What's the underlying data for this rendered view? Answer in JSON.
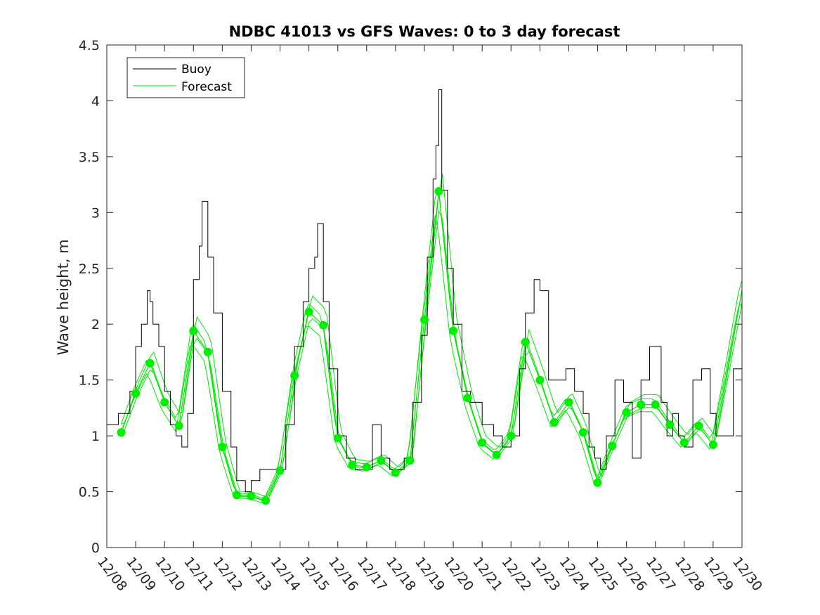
{
  "chart_data": {
    "type": "line",
    "title": "NDBC 41013 vs GFS Waves: 0 to 3 day forecast",
    "xlabel": "",
    "ylabel": "Wave height, m",
    "xlim": [
      8,
      30
    ],
    "ylim": [
      0,
      4.5
    ],
    "yticks": [
      0,
      0.5,
      1,
      1.5,
      2,
      2.5,
      3,
      3.5,
      4,
      4.5
    ],
    "ytick_labels": [
      "0",
      "0.5",
      "1",
      "1.5",
      "2",
      "2.5",
      "3",
      "3.5",
      "4",
      "4.5"
    ],
    "xticks": [
      8,
      9,
      10,
      11,
      12,
      13,
      14,
      15,
      16,
      17,
      18,
      19,
      20,
      21,
      22,
      23,
      24,
      25,
      26,
      27,
      28,
      29,
      30
    ],
    "xtick_labels": [
      "12/08",
      "12/09",
      "12/10",
      "12/11",
      "12/12",
      "12/13",
      "12/14",
      "12/15",
      "12/16",
      "12/17",
      "12/18",
      "12/19",
      "12/20",
      "12/21",
      "12/22",
      "12/23",
      "12/24",
      "12/25",
      "12/26",
      "12/27",
      "12/28",
      "12/29",
      "12/30"
    ],
    "legend": {
      "position": "top-left",
      "entries": [
        "Buoy",
        "Forecast"
      ]
    },
    "colors": {
      "buoy": "#000000",
      "forecast": "#00e600",
      "marker": "#00ee00",
      "axis": "#262626"
    },
    "series": [
      {
        "name": "Buoy",
        "x": [
          8.0,
          8.2,
          8.4,
          8.6,
          8.8,
          9.0,
          9.2,
          9.4,
          9.5,
          9.6,
          9.8,
          10.0,
          10.2,
          10.4,
          10.6,
          10.8,
          11.0,
          11.2,
          11.3,
          11.5,
          11.7,
          12.0,
          12.3,
          12.5,
          12.8,
          13.0,
          13.3,
          13.5,
          13.8,
          14.0,
          14.2,
          14.5,
          14.8,
          15.0,
          15.2,
          15.3,
          15.5,
          15.7,
          16.0,
          16.3,
          16.6,
          16.9,
          17.2,
          17.5,
          17.8,
          18.0,
          18.3,
          18.6,
          18.9,
          19.1,
          19.3,
          19.4,
          19.5,
          19.6,
          19.8,
          20.0,
          20.3,
          20.6,
          21.0,
          21.4,
          21.7,
          22.0,
          22.3,
          22.5,
          22.8,
          23.0,
          23.3,
          23.6,
          23.9,
          24.2,
          24.5,
          24.7,
          24.9,
          25.1,
          25.3,
          25.6,
          25.9,
          26.2,
          26.5,
          26.8,
          27.0,
          27.2,
          27.4,
          27.6,
          27.8,
          28.0,
          28.3,
          28.6,
          28.9,
          29.1,
          29.4,
          29.7,
          30.0
        ],
        "values": [
          1.1,
          1.1,
          1.2,
          1.2,
          1.4,
          1.8,
          2.0,
          2.3,
          2.2,
          2.0,
          1.8,
          1.4,
          1.1,
          1.0,
          0.9,
          1.2,
          2.4,
          2.7,
          3.1,
          2.6,
          2.1,
          1.4,
          0.9,
          0.6,
          0.5,
          0.6,
          0.7,
          0.7,
          0.7,
          0.7,
          1.1,
          1.8,
          2.2,
          2.5,
          2.6,
          2.9,
          2.2,
          1.6,
          1.0,
          0.8,
          0.7,
          0.7,
          1.1,
          0.8,
          0.7,
          0.7,
          0.8,
          1.3,
          1.9,
          2.6,
          3.3,
          3.6,
          4.1,
          3.2,
          2.5,
          2.0,
          1.4,
          1.3,
          1.1,
          1.0,
          0.9,
          1.0,
          1.6,
          2.1,
          2.4,
          2.3,
          1.5,
          1.5,
          1.6,
          1.4,
          1.2,
          0.9,
          0.8,
          0.7,
          1.0,
          1.5,
          1.3,
          0.8,
          1.5,
          1.8,
          1.8,
          1.3,
          1.0,
          1.2,
          1.0,
          0.9,
          1.5,
          1.6,
          1.2,
          1.0,
          1.0,
          1.6,
          1.4
        ]
      },
      {
        "name": "Forecast",
        "x": [
          8.5,
          9.0,
          9.5,
          10.0,
          10.5,
          11.0,
          11.5,
          12.0,
          12.5,
          13.0,
          13.5,
          14.0,
          14.5,
          15.0,
          15.5,
          16.0,
          16.5,
          17.0,
          17.5,
          18.0,
          18.5,
          19.0,
          19.5,
          20.0,
          20.5,
          21.0,
          21.5,
          22.0,
          22.5,
          23.0,
          23.5,
          24.0,
          24.5,
          25.0,
          25.5,
          26.0,
          26.5,
          27.0,
          27.5,
          28.0,
          28.5,
          29.0,
          29.5,
          30.0
        ],
        "values": [
          1.03,
          1.38,
          1.65,
          1.3,
          1.09,
          1.94,
          1.75,
          0.9,
          0.47,
          0.46,
          0.42,
          0.69,
          1.54,
          2.11,
          1.99,
          0.98,
          0.74,
          0.72,
          0.78,
          0.67,
          0.78,
          2.04,
          3.19,
          1.94,
          1.34,
          0.94,
          0.83,
          1.0,
          1.84,
          1.5,
          1.12,
          1.3,
          1.03,
          0.58,
          0.91,
          1.21,
          1.28,
          1.28,
          1.1,
          0.94,
          1.09,
          0.92,
          1.6,
          2.3
        ]
      }
    ],
    "analysis_points": {
      "name": "Forecast analysis (0-day)",
      "x": [
        8.5,
        9.0,
        9.5,
        10.0,
        10.5,
        11.0,
        11.5,
        12.0,
        12.5,
        13.0,
        13.5,
        14.0,
        14.5,
        15.0,
        15.5,
        16.0,
        16.5,
        17.0,
        17.5,
        18.0,
        18.5,
        19.0,
        19.5,
        20.0,
        20.5,
        21.0,
        21.5,
        22.0,
        22.5,
        23.0,
        23.5,
        24.0,
        24.5,
        25.0,
        25.5,
        26.0,
        26.5,
        27.0,
        27.5,
        28.0,
        28.5,
        29.0
      ],
      "values": [
        1.03,
        1.38,
        1.65,
        1.3,
        1.09,
        1.94,
        1.75,
        0.9,
        0.47,
        0.46,
        0.42,
        0.69,
        1.54,
        2.11,
        1.99,
        0.98,
        0.74,
        0.72,
        0.78,
        0.67,
        0.78,
        2.04,
        3.19,
        1.94,
        1.34,
        0.94,
        0.83,
        1.0,
        1.84,
        1.5,
        1.12,
        1.3,
        1.03,
        0.58,
        0.91,
        1.21,
        1.28,
        1.28,
        1.1,
        0.94,
        1.09,
        0.92
      ]
    }
  }
}
